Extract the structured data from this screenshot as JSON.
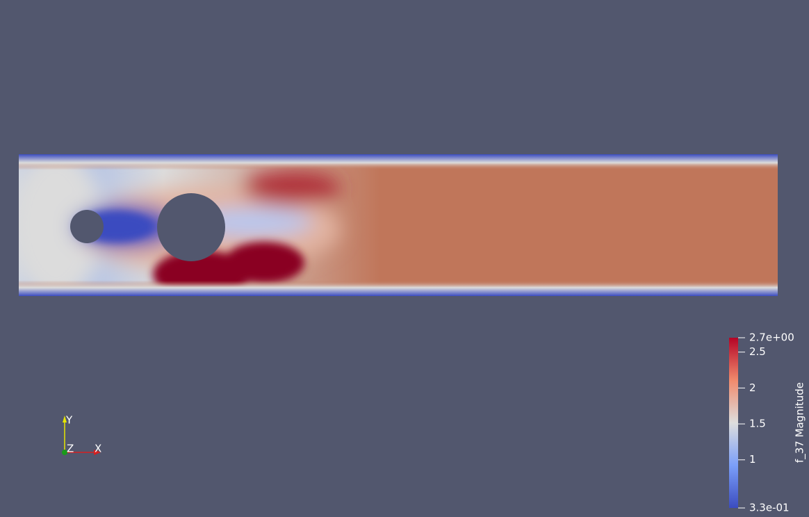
{
  "colorbar": {
    "title": "f_37 Magnitude",
    "min": {
      "value": 0.33,
      "label": "3.3e-01"
    },
    "max": {
      "value": 2.7,
      "label": "2.7e+00"
    },
    "ticks": [
      1,
      1.5,
      2,
      2.5
    ]
  },
  "axes": {
    "x": "X",
    "y": "Y",
    "z": "Z"
  }
}
